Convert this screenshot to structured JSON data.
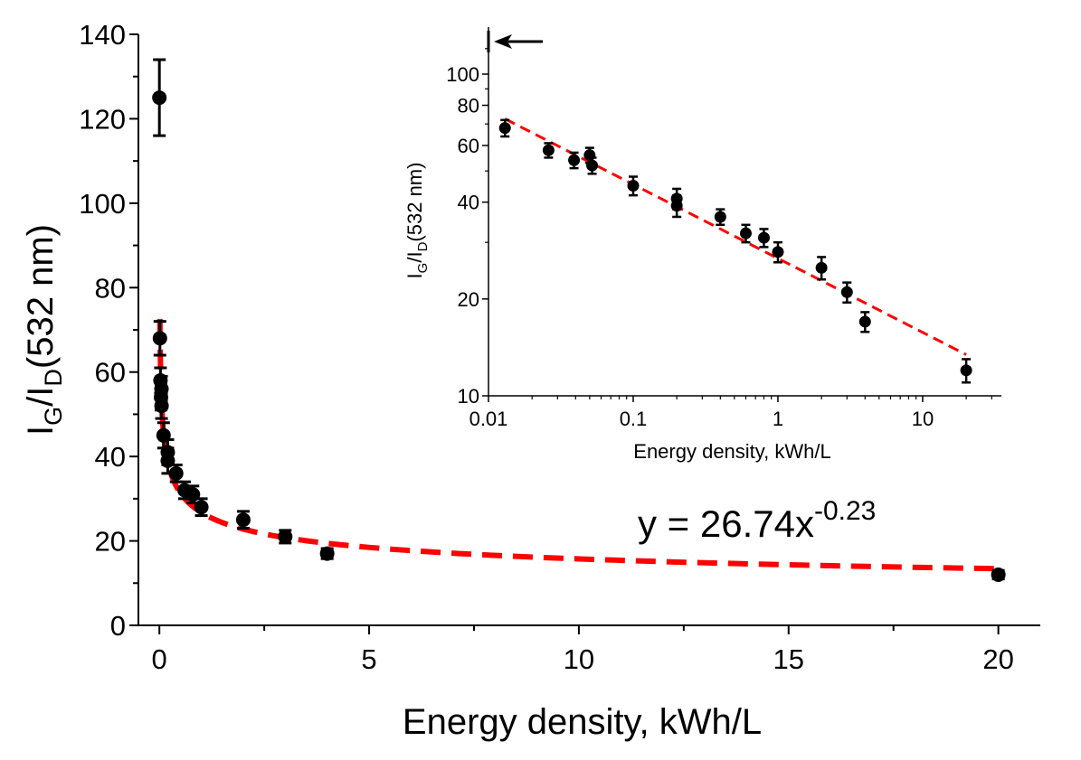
{
  "chart_data": [
    {
      "type": "scatter",
      "title": "",
      "xlabel": "Energy density, kWh/L",
      "ylabel_parts": {
        "main": "I",
        "sub1": "G",
        "slash": "/I",
        "sub2": "D",
        "rest": "(532 nm)"
      },
      "xlim": [
        -0.5,
        21
      ],
      "ylim": [
        0,
        140
      ],
      "xticks": [
        0,
        5,
        10,
        15,
        20
      ],
      "yticks": [
        0,
        20,
        40,
        60,
        80,
        100,
        120,
        140
      ],
      "grid": false,
      "legend": "none",
      "series": [
        {
          "points": [
            {
              "x": 0.0,
              "y": 125,
              "err": 9
            },
            {
              "x": 0.013,
              "y": 68,
              "err": 4
            },
            {
              "x": 0.026,
              "y": 58,
              "err": 3
            },
            {
              "x": 0.039,
              "y": 54,
              "err": 3
            },
            {
              "x": 0.05,
              "y": 56,
              "err": 3
            },
            {
              "x": 0.052,
              "y": 52,
              "err": 3
            },
            {
              "x": 0.1,
              "y": 45,
              "err": 3
            },
            {
              "x": 0.2,
              "y": 39,
              "err": 3
            },
            {
              "x": 0.2,
              "y": 41,
              "err": 3
            },
            {
              "x": 0.4,
              "y": 36,
              "err": 2
            },
            {
              "x": 0.6,
              "y": 32,
              "err": 2
            },
            {
              "x": 0.8,
              "y": 31,
              "err": 2
            },
            {
              "x": 1.0,
              "y": 28,
              "err": 2
            },
            {
              "x": 2.0,
              "y": 25,
              "err": 2
            },
            {
              "x": 3.0,
              "y": 21,
              "err": 1.5
            },
            {
              "x": 4.0,
              "y": 17,
              "err": 1.2
            },
            {
              "x": 20.0,
              "y": 12,
              "err": 1
            }
          ]
        }
      ],
      "fit": {
        "a": 26.74,
        "b": -0.23,
        "color": "#ff0000",
        "x_from": 0.013,
        "x_to": 20
      },
      "equation": {
        "base": "y = 26.74x",
        "exponent": "-0.23"
      },
      "marker_color": "#000000"
    },
    {
      "type": "scatter",
      "title": "",
      "xlabel": "Energy density, kWh/L",
      "ylabel_parts": {
        "main": "I",
        "sub1": "G",
        "slash": "/I",
        "sub2": "D",
        "rest": "(532 nm)"
      },
      "xscale": "log",
      "yscale": "log",
      "xlim": [
        0.01,
        35
      ],
      "ylim": [
        10,
        140
      ],
      "xticks": [
        "0.01",
        "0.1",
        "1",
        "10"
      ],
      "xtick_values": [
        0.01,
        0.1,
        1,
        10
      ],
      "yticks": [
        "10",
        "20",
        "40",
        "60",
        "80",
        "100"
      ],
      "ytick_values": [
        10,
        20,
        40,
        60,
        80,
        100
      ],
      "grid": false,
      "legend": "none",
      "annotation": "arrow pointing to off-scale point at x = 0",
      "series": [
        {
          "points": [
            {
              "x": 0.013,
              "y": 68,
              "err": 4
            },
            {
              "x": 0.026,
              "y": 58,
              "err": 3
            },
            {
              "x": 0.039,
              "y": 54,
              "err": 3
            },
            {
              "x": 0.05,
              "y": 56,
              "err": 3
            },
            {
              "x": 0.052,
              "y": 52,
              "err": 3
            },
            {
              "x": 0.1,
              "y": 45,
              "err": 3
            },
            {
              "x": 0.2,
              "y": 39,
              "err": 3
            },
            {
              "x": 0.2,
              "y": 41,
              "err": 3
            },
            {
              "x": 0.4,
              "y": 36,
              "err": 2
            },
            {
              "x": 0.6,
              "y": 32,
              "err": 2
            },
            {
              "x": 0.8,
              "y": 31,
              "err": 2
            },
            {
              "x": 1.0,
              "y": 28,
              "err": 2
            },
            {
              "x": 2.0,
              "y": 25,
              "err": 2
            },
            {
              "x": 3.0,
              "y": 21,
              "err": 1.5
            },
            {
              "x": 4.0,
              "y": 17,
              "err": 1.2
            },
            {
              "x": 20.0,
              "y": 12,
              "err": 1
            }
          ]
        }
      ],
      "fit": {
        "a": 26.74,
        "b": -0.23,
        "color": "#ff0000",
        "x_from": 0.013,
        "x_to": 20
      },
      "marker_color": "#000000"
    }
  ]
}
